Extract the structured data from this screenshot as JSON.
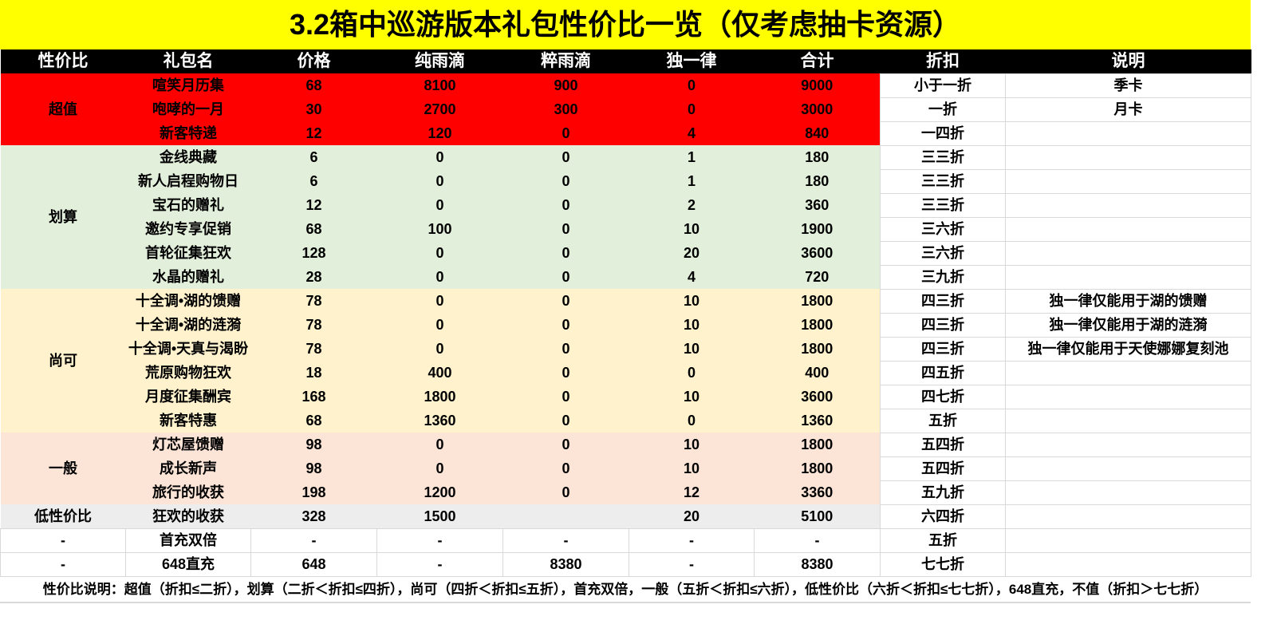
{
  "title": "3.2箱中巡游版本礼包性价比一览（仅考虑抽卡资源）",
  "headers": [
    "性价比",
    "礼包名",
    "价格",
    "纯雨滴",
    "粹雨滴",
    "独一律",
    "合计",
    "折扣",
    "说明"
  ],
  "colors": {
    "超值": "#ff0000",
    "划算": "#e2efda",
    "尚可": "#fff2cc",
    "一般": "#fce4d6",
    "低性价比": "#ededed",
    "-": "#ffffff"
  },
  "groups": [
    {
      "tier": "超值",
      "rows": [
        [
          "喧笑月历集",
          "68",
          "8100",
          "900",
          "0",
          "9000",
          "小于一折",
          "季卡"
        ],
        [
          "咆哮的一月",
          "30",
          "2700",
          "300",
          "0",
          "3000",
          "一折",
          "月卡"
        ],
        [
          "新客特递",
          "12",
          "120",
          "0",
          "4",
          "840",
          "一四折",
          ""
        ]
      ]
    },
    {
      "tier": "划算",
      "rows": [
        [
          "金线典藏",
          "6",
          "0",
          "0",
          "1",
          "180",
          "三三折",
          ""
        ],
        [
          "新人启程购物日",
          "6",
          "0",
          "0",
          "1",
          "180",
          "三三折",
          ""
        ],
        [
          "宝石的赠礼",
          "12",
          "0",
          "0",
          "2",
          "360",
          "三三折",
          ""
        ],
        [
          "邀约专享促销",
          "68",
          "100",
          "0",
          "10",
          "1900",
          "三六折",
          ""
        ],
        [
          "首轮征集狂欢",
          "128",
          "0",
          "0",
          "20",
          "3600",
          "三六折",
          ""
        ],
        [
          "水晶的赠礼",
          "28",
          "0",
          "0",
          "4",
          "720",
          "三九折",
          ""
        ]
      ]
    },
    {
      "tier": "尚可",
      "rows": [
        [
          "十全调•湖的馈赠",
          "78",
          "0",
          "0",
          "10",
          "1800",
          "四三折",
          "独一律仅能用于湖的馈赠"
        ],
        [
          "十全调•湖的涟漪",
          "78",
          "0",
          "0",
          "10",
          "1800",
          "四三折",
          "独一律仅能用于湖的涟漪"
        ],
        [
          "十全调•天真与渴盼",
          "78",
          "0",
          "0",
          "10",
          "1800",
          "四三折",
          "独一律仅能用于天使娜娜复刻池"
        ],
        [
          "荒原购物狂欢",
          "18",
          "400",
          "0",
          "0",
          "400",
          "四五折",
          ""
        ],
        [
          "月度征集酬宾",
          "168",
          "1800",
          "0",
          "10",
          "3600",
          "四七折",
          ""
        ],
        [
          "新客特惠",
          "68",
          "1360",
          "0",
          "0",
          "1360",
          "五折",
          ""
        ]
      ]
    },
    {
      "tier": "一般",
      "rows": [
        [
          "灯芯屋馈赠",
          "98",
          "0",
          "0",
          "10",
          "1800",
          "五四折",
          ""
        ],
        [
          "成长新声",
          "98",
          "0",
          "0",
          "10",
          "1800",
          "五四折",
          ""
        ],
        [
          "旅行的收获",
          "198",
          "1200",
          "0",
          "12",
          "3360",
          "五九折",
          ""
        ]
      ]
    },
    {
      "tier": "低性价比",
      "rows": [
        [
          "狂欢的收获",
          "328",
          "1500",
          "",
          "20",
          "5100",
          "六四折",
          ""
        ]
      ]
    },
    {
      "tier": "-",
      "rows": [
        [
          "首充双倍",
          "-",
          "-",
          "-",
          "-",
          "-",
          "五折",
          ""
        ]
      ]
    },
    {
      "tier": "-",
      "rows": [
        [
          "648直充",
          "648",
          "-",
          "8380",
          "-",
          "8380",
          "七七折",
          ""
        ]
      ]
    }
  ],
  "footer": "性价比说明：超值（折扣≤二折），划算（二折＜折扣≤四折），尚可（四折＜折扣≤五折），首充双倍，一般（五折＜折扣≤六折），低性价比（六折＜折扣≤七七折），648直充，不值（折扣＞七七折）"
}
